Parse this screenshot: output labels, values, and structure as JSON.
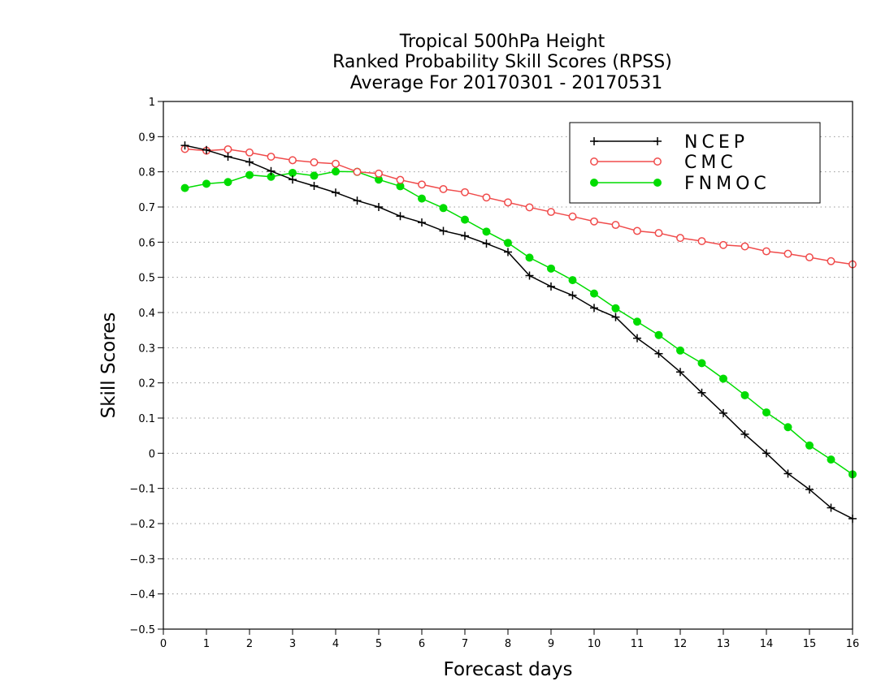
{
  "chart_data": {
    "type": "line",
    "title": [
      "Tropical 500hPa Height",
      "Ranked Probability Skill Scores (RPSS)",
      "Average For 20170301 - 20170531"
    ],
    "xlabel": "Forecast days",
    "ylabel": "Skill Scores",
    "xlim": [
      0,
      16
    ],
    "ylim": [
      -0.5,
      1
    ],
    "xticks": [
      0,
      1,
      2,
      3,
      4,
      5,
      6,
      7,
      8,
      9,
      10,
      11,
      12,
      13,
      14,
      15,
      16
    ],
    "yticks": [
      1,
      0.9,
      0.8,
      0.7,
      0.6,
      0.5,
      0.4,
      0.3,
      0.2,
      0.1,
      0,
      -0.1,
      -0.2,
      -0.3,
      -0.4,
      -0.5
    ],
    "ytick_labels": [
      "1",
      "0.9",
      "0.8",
      "0.7",
      "0.6",
      "0.5",
      "0.4",
      "0.3",
      "0.2",
      "0.1",
      "0",
      "−0.1",
      "−0.2",
      "−0.3",
      "−0.4",
      "−0.5"
    ],
    "grid": "horizontal-dotted",
    "legend_position": "top-right",
    "x": [
      0.5,
      1,
      1.5,
      2,
      2.5,
      3,
      3.5,
      4,
      4.5,
      5,
      5.5,
      6,
      6.5,
      7,
      7.5,
      8,
      8.5,
      9,
      9.5,
      10,
      10.5,
      11,
      11.5,
      12,
      12.5,
      13,
      13.5,
      14,
      14.5,
      15,
      15.5,
      16
    ],
    "series": [
      {
        "name": "NCEP",
        "color": "#000000",
        "marker": "plus",
        "values": [
          0.875,
          0.862,
          0.843,
          0.828,
          0.802,
          0.778,
          0.76,
          0.741,
          0.718,
          0.7,
          0.674,
          0.656,
          0.632,
          0.618,
          0.596,
          0.572,
          0.505,
          0.474,
          0.449,
          0.413,
          0.387,
          0.327,
          0.283,
          0.231,
          0.172,
          0.114,
          0.054,
          0.0,
          -0.058,
          -0.103,
          -0.155,
          -0.186
        ]
      },
      {
        "name": "CMC",
        "color": "#f04b4b",
        "marker": "open-circle",
        "values": [
          0.865,
          0.86,
          0.864,
          0.855,
          0.843,
          0.833,
          0.827,
          0.823,
          0.8,
          0.795,
          0.777,
          0.764,
          0.751,
          0.742,
          0.727,
          0.713,
          0.699,
          0.686,
          0.673,
          0.659,
          0.649,
          0.632,
          0.626,
          0.612,
          0.603,
          0.592,
          0.588,
          0.574,
          0.567,
          0.557,
          0.546,
          0.537
        ]
      },
      {
        "name": "FNMOC",
        "color": "#00dc00",
        "marker": "filled-circle",
        "values": [
          0.754,
          0.766,
          0.771,
          0.791,
          0.786,
          0.797,
          0.789,
          0.801,
          0.8,
          0.778,
          0.759,
          0.724,
          0.697,
          0.664,
          0.63,
          0.598,
          0.556,
          0.525,
          0.492,
          0.454,
          0.412,
          0.374,
          0.336,
          0.292,
          0.256,
          0.212,
          0.165,
          0.116,
          0.074,
          0.022,
          -0.018,
          -0.06
        ]
      }
    ]
  }
}
